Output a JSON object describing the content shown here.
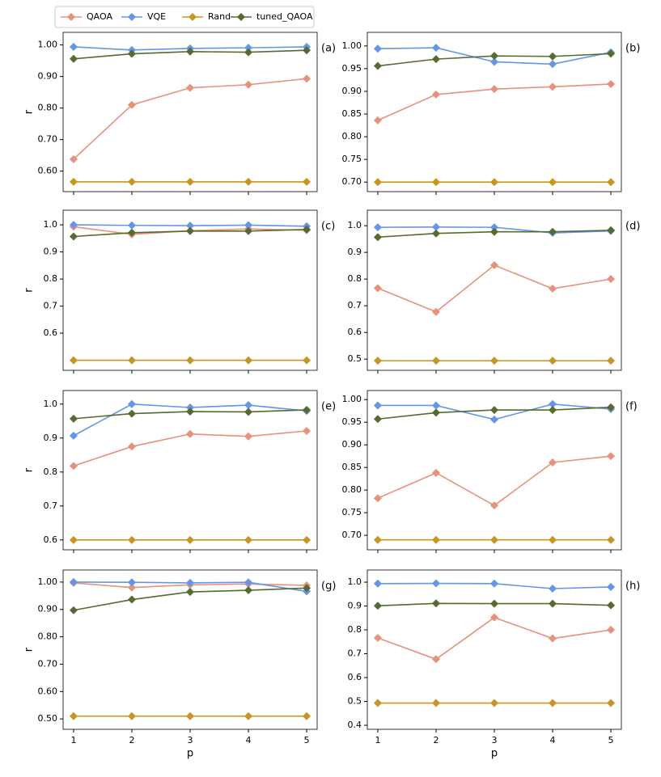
{
  "chart_data": [
    {
      "type": "line",
      "panel_label": "(a)",
      "ylabel": "r",
      "x": [
        1,
        2,
        3,
        4,
        5
      ],
      "xlim": [
        0.82,
        5.18
      ],
      "xticks": [
        1,
        2,
        3,
        4,
        5
      ],
      "ylim": [
        0.535,
        1.04
      ],
      "yticks": [
        {
          "value": 0.6,
          "label": "0.60"
        },
        {
          "value": 0.7,
          "label": "0.70"
        },
        {
          "value": 0.8,
          "label": "0.80"
        },
        {
          "value": 0.9,
          "label": "0.90"
        },
        {
          "value": 1.0,
          "label": "1.00"
        }
      ],
      "series": [
        {
          "name": "QAOA",
          "color": "#e8917a",
          "values": [
            0.638,
            0.81,
            0.864,
            0.874,
            0.893
          ]
        },
        {
          "name": "VQE",
          "color": "#6495ed",
          "values": [
            0.994,
            0.984,
            0.989,
            0.991,
            0.994
          ]
        },
        {
          "name": "Rand",
          "color": "#c8961e",
          "values": [
            0.566,
            0.566,
            0.566,
            0.566,
            0.566
          ]
        },
        {
          "name": "tuned_QAOA",
          "color": "#556b2f",
          "values": [
            0.956,
            0.972,
            0.979,
            0.977,
            0.983
          ]
        }
      ]
    },
    {
      "type": "line",
      "panel_label": "(b)",
      "x": [
        1,
        2,
        3,
        4,
        5
      ],
      "xlim": [
        0.82,
        5.18
      ],
      "xticks": [
        1,
        2,
        3,
        4,
        5
      ],
      "ylim": [
        0.679,
        1.03
      ],
      "yticks": [
        {
          "value": 0.7,
          "label": "0.70"
        },
        {
          "value": 0.75,
          "label": "0.75"
        },
        {
          "value": 0.8,
          "label": "0.80"
        },
        {
          "value": 0.85,
          "label": "0.85"
        },
        {
          "value": 0.9,
          "label": "0.90"
        },
        {
          "value": 0.95,
          "label": "0.95"
        },
        {
          "value": 1.0,
          "label": "1.00"
        }
      ],
      "series": [
        {
          "name": "QAOA",
          "color": "#e8917a",
          "values": [
            0.836,
            0.893,
            0.905,
            0.91,
            0.916
          ]
        },
        {
          "name": "VQE",
          "color": "#6495ed",
          "values": [
            0.994,
            0.996,
            0.965,
            0.96,
            0.986
          ]
        },
        {
          "name": "Rand",
          "color": "#c8961e",
          "values": [
            0.7,
            0.7,
            0.7,
            0.7,
            0.7
          ]
        },
        {
          "name": "tuned_QAOA",
          "color": "#556b2f",
          "values": [
            0.956,
            0.971,
            0.978,
            0.977,
            0.983
          ]
        }
      ]
    },
    {
      "type": "line",
      "panel_label": "(c)",
      "ylabel": "r",
      "x": [
        1,
        2,
        3,
        4,
        5
      ],
      "xlim": [
        0.82,
        5.18
      ],
      "xticks": [
        1,
        2,
        3,
        4,
        5
      ],
      "ylim": [
        0.463,
        1.054
      ],
      "yticks": [
        0.6,
        0.7,
        0.8,
        0.9,
        {
          "value": 1.0,
          "label": "1.0"
        }
      ],
      "series": [
        {
          "name": "QAOA",
          "color": "#e8917a",
          "values": [
            0.993,
            0.965,
            0.978,
            0.985,
            0.98
          ]
        },
        {
          "name": "VQE",
          "color": "#6495ed",
          "values": [
            1.0,
            0.998,
            0.997,
            0.999,
            0.995
          ]
        },
        {
          "name": "Rand",
          "color": "#c8961e",
          "values": [
            0.5,
            0.5,
            0.5,
            0.5,
            0.5
          ]
        },
        {
          "name": "tuned_QAOA",
          "color": "#556b2f",
          "values": [
            0.957,
            0.971,
            0.977,
            0.977,
            0.983
          ]
        }
      ]
    },
    {
      "type": "line",
      "panel_label": "(d)",
      "x": [
        1,
        2,
        3,
        4,
        5
      ],
      "xlim": [
        0.82,
        5.18
      ],
      "xticks": [
        1,
        2,
        3,
        4,
        5
      ],
      "ylim": [
        0.458,
        1.058
      ],
      "yticks": [
        0.5,
        0.6,
        0.7,
        0.8,
        0.9,
        {
          "value": 1.0,
          "label": "1.0"
        }
      ],
      "series": [
        {
          "name": "QAOA",
          "color": "#e8917a",
          "values": [
            0.766,
            0.677,
            0.852,
            0.764,
            0.8
          ]
        },
        {
          "name": "VQE",
          "color": "#6495ed",
          "values": [
            0.994,
            0.995,
            0.994,
            0.973,
            0.98
          ]
        },
        {
          "name": "Rand",
          "color": "#c8961e",
          "values": [
            0.494,
            0.494,
            0.494,
            0.494,
            0.494
          ]
        },
        {
          "name": "tuned_QAOA",
          "color": "#556b2f",
          "values": [
            0.957,
            0.971,
            0.977,
            0.977,
            0.983
          ]
        }
      ]
    },
    {
      "type": "line",
      "panel_label": "(e)",
      "ylabel": "r",
      "x": [
        1,
        2,
        3,
        4,
        5
      ],
      "xlim": [
        0.82,
        5.18
      ],
      "xticks": [
        1,
        2,
        3,
        4,
        5
      ],
      "ylim": [
        0.571,
        1.04
      ],
      "yticks": [
        0.6,
        0.7,
        0.8,
        0.9,
        {
          "value": 1.0,
          "label": "1.0"
        }
      ],
      "series": [
        {
          "name": "QAOA",
          "color": "#e8917a",
          "values": [
            0.818,
            0.875,
            0.912,
            0.905,
            0.921
          ]
        },
        {
          "name": "VQE",
          "color": "#6495ed",
          "values": [
            0.907,
            1.0,
            0.99,
            0.997,
            0.98
          ]
        },
        {
          "name": "Rand",
          "color": "#c8961e",
          "values": [
            0.6,
            0.6,
            0.6,
            0.6,
            0.6
          ]
        },
        {
          "name": "tuned_QAOA",
          "color": "#556b2f",
          "values": [
            0.957,
            0.972,
            0.978,
            0.977,
            0.983
          ]
        }
      ]
    },
    {
      "type": "line",
      "panel_label": "(f)",
      "x": [
        1,
        2,
        3,
        4,
        5
      ],
      "xlim": [
        0.82,
        5.18
      ],
      "xticks": [
        1,
        2,
        3,
        4,
        5
      ],
      "ylim": [
        0.668,
        1.02
      ],
      "yticks": [
        {
          "value": 0.7,
          "label": "0.70"
        },
        {
          "value": 0.75,
          "label": "0.75"
        },
        {
          "value": 0.8,
          "label": "0.80"
        },
        {
          "value": 0.85,
          "label": "0.85"
        },
        {
          "value": 0.9,
          "label": "0.90"
        },
        {
          "value": 0.95,
          "label": "0.95"
        },
        {
          "value": 1.0,
          "label": "1.00"
        }
      ],
      "series": [
        {
          "name": "QAOA",
          "color": "#e8917a",
          "values": [
            0.782,
            0.838,
            0.766,
            0.861,
            0.875
          ]
        },
        {
          "name": "VQE",
          "color": "#6495ed",
          "values": [
            0.987,
            0.987,
            0.956,
            0.99,
            0.979
          ]
        },
        {
          "name": "Rand",
          "color": "#c8961e",
          "values": [
            0.69,
            0.69,
            0.69,
            0.69,
            0.69
          ]
        },
        {
          "name": "tuned_QAOA",
          "color": "#556b2f",
          "values": [
            0.957,
            0.971,
            0.977,
            0.977,
            0.983
          ]
        }
      ]
    },
    {
      "type": "line",
      "panel_label": "(g)",
      "ylabel": "r",
      "xlabel": "p",
      "x": [
        1,
        2,
        3,
        4,
        5
      ],
      "xlim": [
        0.82,
        5.18
      ],
      "xticks": [
        1,
        2,
        3,
        4,
        5
      ],
      "ylim": [
        0.462,
        1.044
      ],
      "yticks": [
        {
          "value": 0.5,
          "label": "0.50"
        },
        {
          "value": 0.6,
          "label": "0.60"
        },
        {
          "value": 0.7,
          "label": "0.70"
        },
        {
          "value": 0.8,
          "label": "0.80"
        },
        {
          "value": 0.9,
          "label": "0.90"
        },
        {
          "value": 1.0,
          "label": "1.00"
        }
      ],
      "series": [
        {
          "name": "QAOA",
          "color": "#e8917a",
          "values": [
            0.997,
            0.98,
            0.99,
            0.993,
            0.988
          ]
        },
        {
          "name": "VQE",
          "color": "#6495ed",
          "values": [
            1.0,
            0.999,
            0.997,
            0.999,
            0.966
          ]
        },
        {
          "name": "Rand",
          "color": "#c8961e",
          "values": [
            0.51,
            0.51,
            0.51,
            0.51,
            0.51
          ]
        },
        {
          "name": "tuned_QAOA",
          "color": "#556b2f",
          "values": [
            0.897,
            0.936,
            0.964,
            0.97,
            0.978
          ]
        }
      ]
    },
    {
      "type": "line",
      "panel_label": "(h)",
      "xlabel": "p",
      "x": [
        1,
        2,
        3,
        4,
        5
      ],
      "xlim": [
        0.82,
        5.18
      ],
      "xticks": [
        1,
        2,
        3,
        4,
        5
      ],
      "ylim": [
        0.383,
        1.051
      ],
      "yticks": [
        0.4,
        0.5,
        0.6,
        0.7,
        0.8,
        0.9,
        {
          "value": 1.0,
          "label": "1.0"
        }
      ],
      "series": [
        {
          "name": "QAOA",
          "color": "#e8917a",
          "values": [
            0.766,
            0.677,
            0.852,
            0.764,
            0.8
          ]
        },
        {
          "name": "VQE",
          "color": "#6495ed",
          "values": [
            0.994,
            0.995,
            0.994,
            0.973,
            0.98
          ]
        },
        {
          "name": "Rand",
          "color": "#c8961e",
          "values": [
            0.493,
            0.493,
            0.493,
            0.493,
            0.493
          ]
        },
        {
          "name": "tuned_QAOA",
          "color": "#556b2f",
          "values": [
            0.901,
            0.911,
            0.91,
            0.91,
            0.903
          ]
        }
      ]
    }
  ]
}
